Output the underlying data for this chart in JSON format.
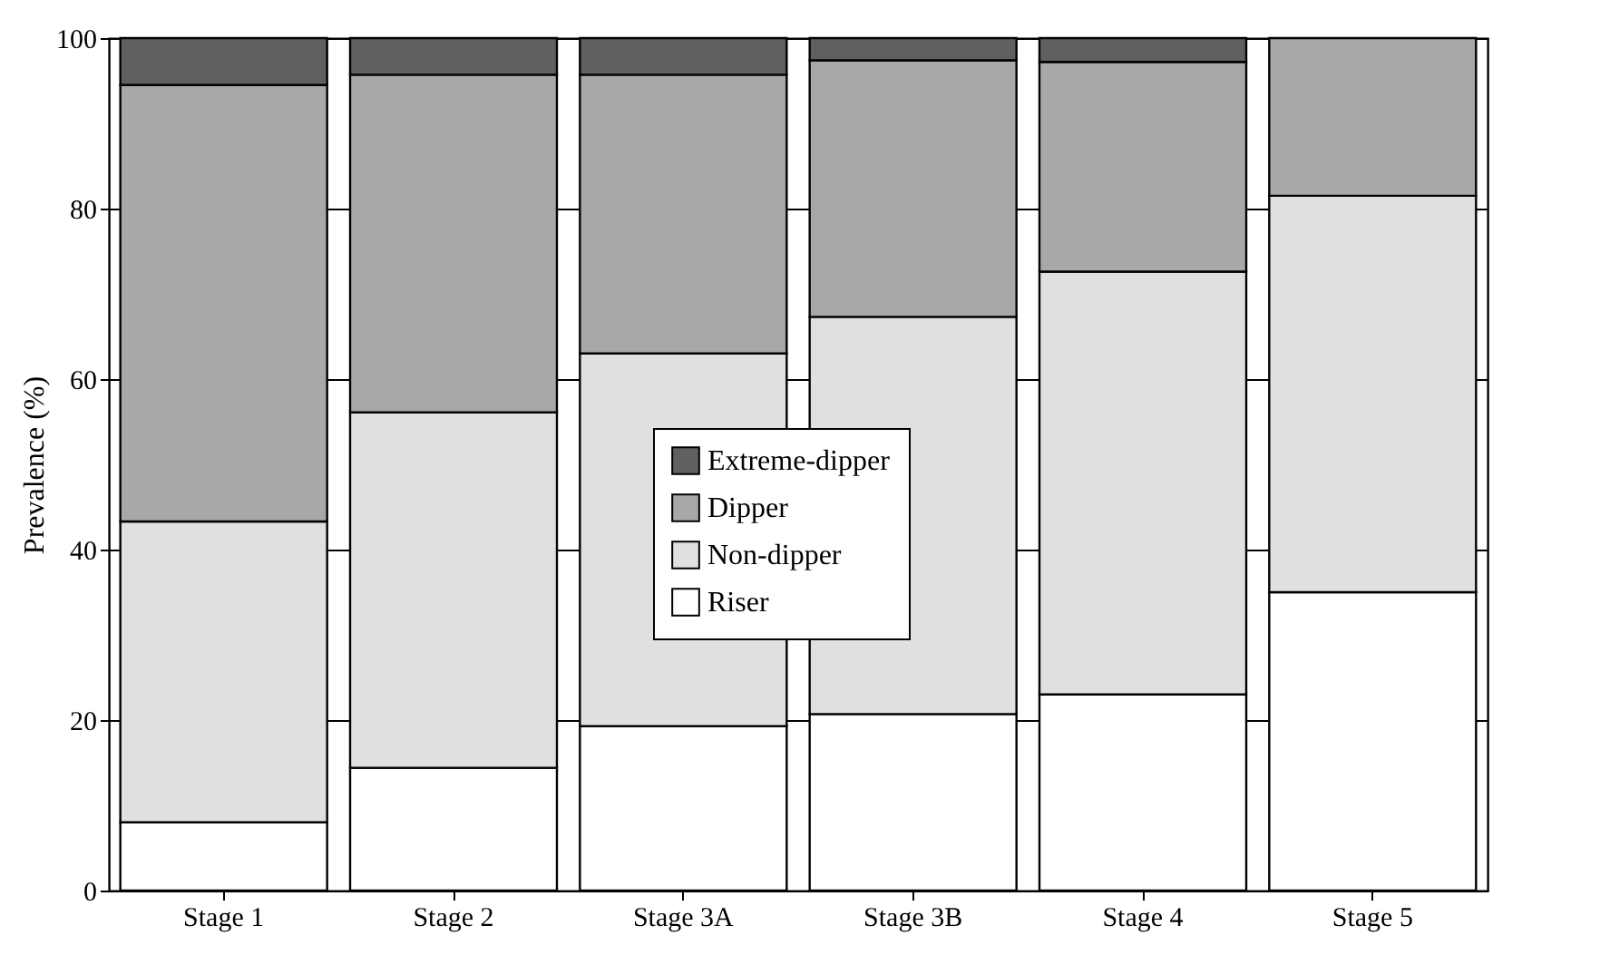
{
  "chart_data": {
    "type": "bar",
    "stacked": true,
    "ylabel": "Prevalence (%)",
    "categories": [
      "Stage 1",
      "Stage 2",
      "Stage 3A",
      "Stage 3B",
      "Stage 4",
      "Stage 5"
    ],
    "series": [
      {
        "name": "Riser",
        "color": "#ffffff",
        "values": [
          8,
          14.4,
          19.3,
          20.7,
          23,
          35
        ]
      },
      {
        "name": "Non-dipper",
        "color": "#e0e0e0",
        "values": [
          35.3,
          41.7,
          43.7,
          46.6,
          49.6,
          46.5
        ]
      },
      {
        "name": "Dipper",
        "color": "#a8a8a8",
        "values": [
          51.2,
          39.6,
          32.7,
          30.1,
          24.6,
          18.5
        ]
      },
      {
        "name": "Extreme-dipper",
        "color": "#606060",
        "values": [
          5.5,
          4.3,
          4.3,
          2.6,
          2.8,
          0
        ]
      }
    ],
    "ylim": [
      0,
      100
    ],
    "yticks": [
      0,
      20,
      40,
      60,
      80,
      100
    ],
    "grid": "y",
    "legend": "center"
  }
}
